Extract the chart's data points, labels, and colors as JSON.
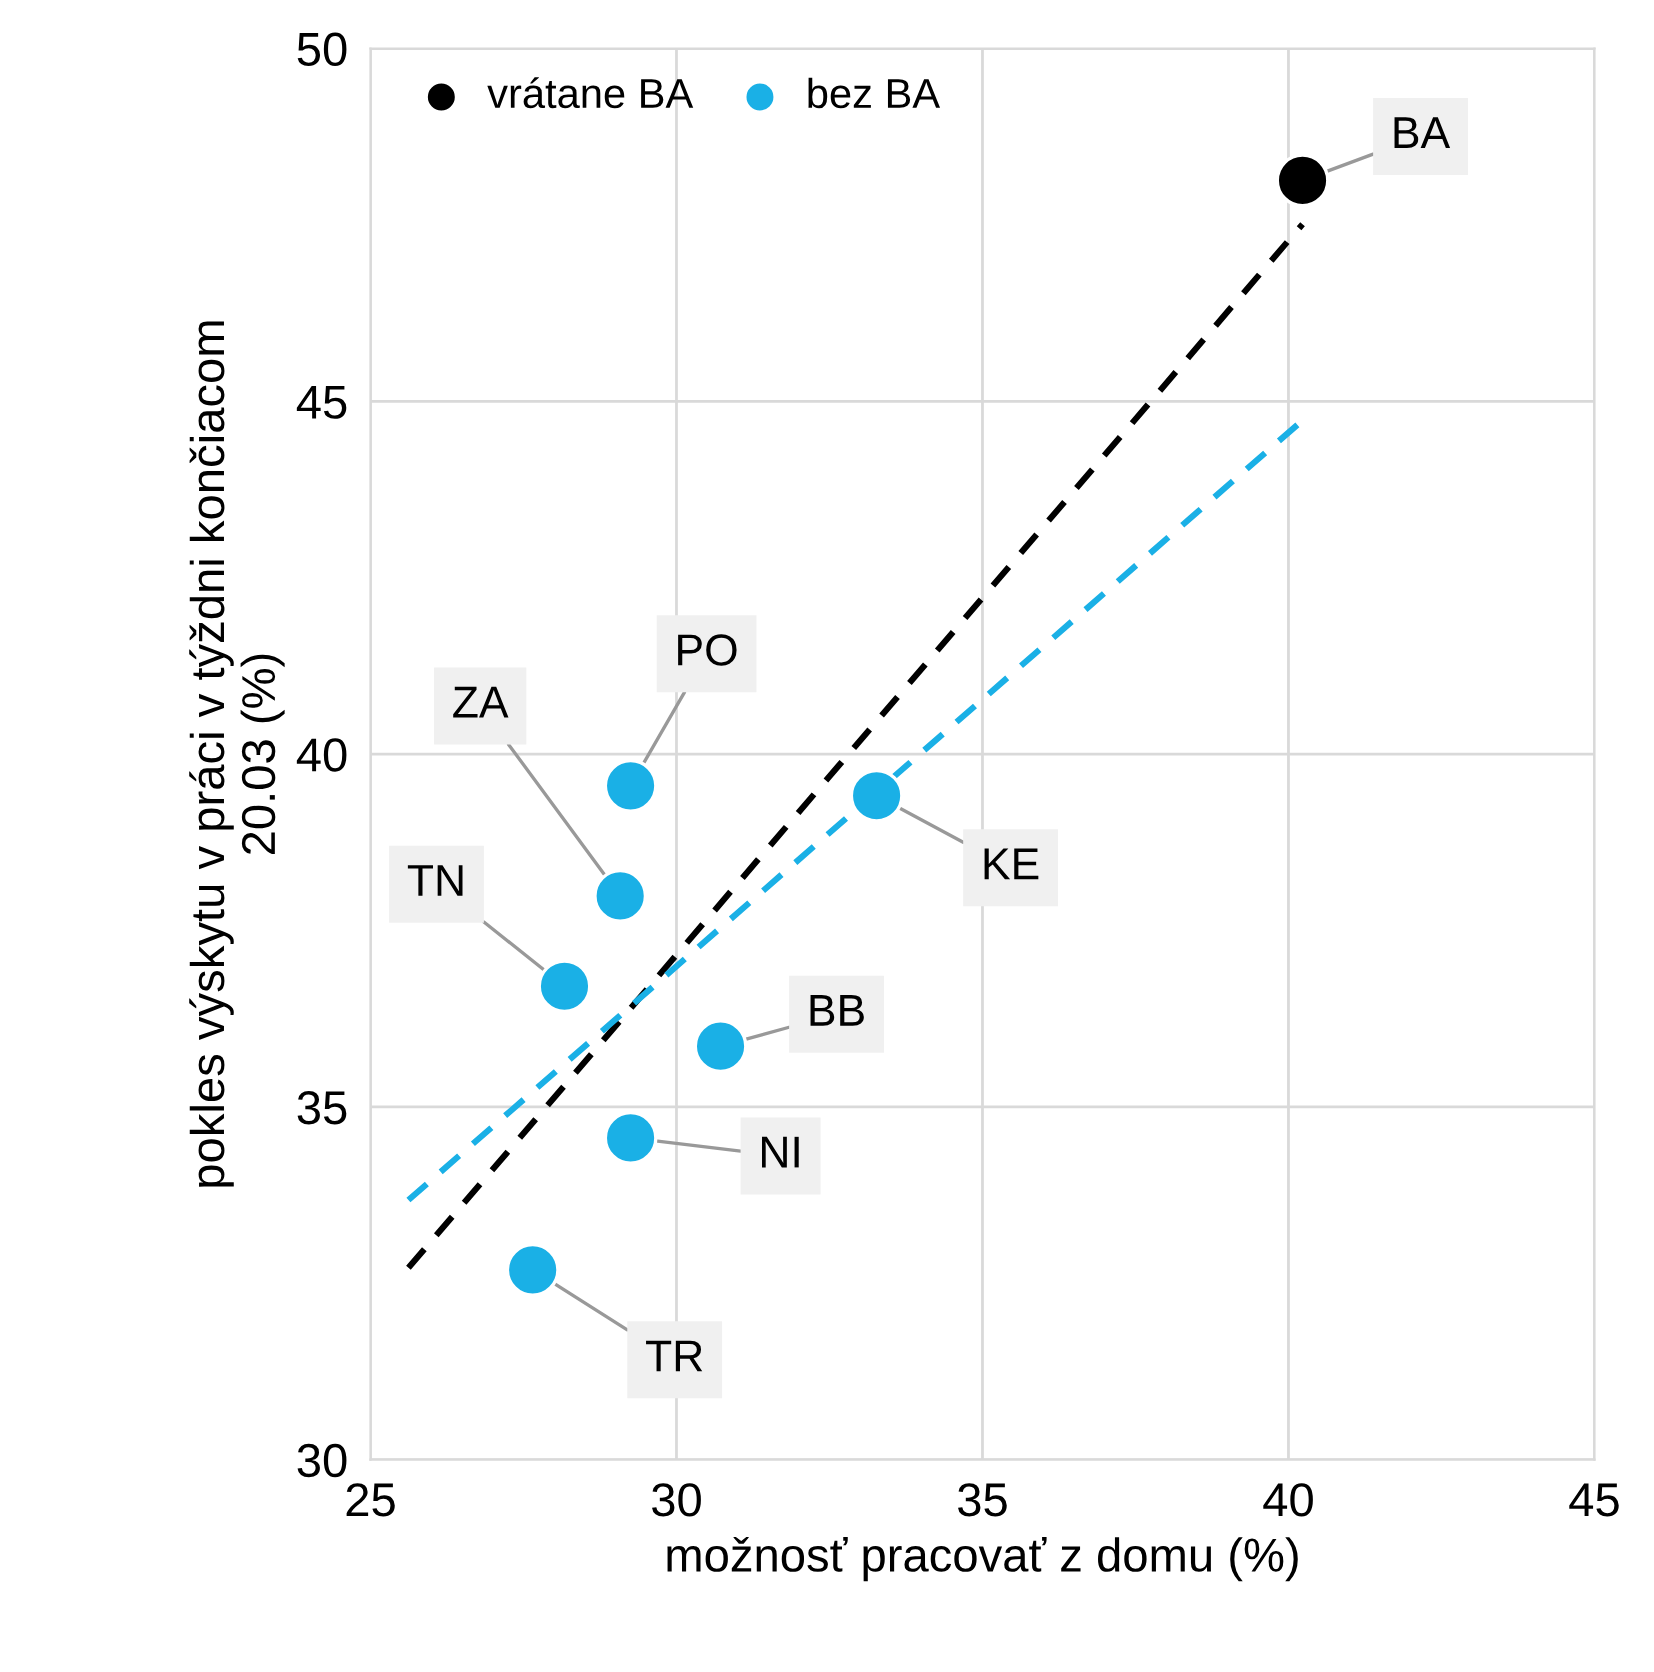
{
  "chart_data": {
    "type": "scatter",
    "xlabel": "možnosť pracovať z domu (%)",
    "ylabel": "pokles výskytu v práci v týždni končiacom\n20.03 (%)",
    "series": [
      {
        "name": "vrátane BA",
        "color": "#000000",
        "x": [
          40.23
        ],
        "values": [
          48.13
        ]
      },
      {
        "name": "bez BA",
        "color": "#1ab0e6",
        "x": [
          29.25,
          29.08,
          28.17,
          33.27,
          30.72,
          29.25,
          27.65
        ],
        "values": [
          39.55,
          37.99,
          36.71,
          39.41,
          35.86,
          34.56,
          32.69
        ]
      },
      {
        "type": "line",
        "color": "#000000",
        "line_style": "dashed",
        "marker": "none",
        "x": [
          25.62,
          40.23
        ],
        "values": [
          32.72,
          47.51
        ]
      },
      {
        "type": "line",
        "color": "#1ab0e6",
        "line_style": "dashed",
        "marker": "none",
        "x": [
          25.62,
          40.23
        ],
        "values": [
          33.68,
          44.73
        ]
      }
    ],
    "annotations": [
      {
        "text": "BA",
        "x": 40.23,
        "y": 48.13
      },
      {
        "text": "PO",
        "x": 29.25,
        "y": 39.55
      },
      {
        "text": "ZA",
        "x": 29.08,
        "y": 37.99
      },
      {
        "text": "TN",
        "x": 28.17,
        "y": 36.71
      },
      {
        "text": "KE",
        "x": 33.27,
        "y": 39.41
      },
      {
        "text": "BB",
        "x": 30.72,
        "y": 35.86
      },
      {
        "text": "NI",
        "x": 29.25,
        "y": 34.56
      },
      {
        "text": "TR",
        "x": 27.65,
        "y": 32.69
      }
    ],
    "xlim": [
      25,
      45
    ],
    "xticks": [
      25,
      30,
      35,
      40,
      45
    ],
    "ylim": [
      30,
      50
    ],
    "yticks": [
      30,
      35,
      40,
      45,
      50
    ],
    "grid": true,
    "legend": "top left",
    "marker": "circle"
  }
}
